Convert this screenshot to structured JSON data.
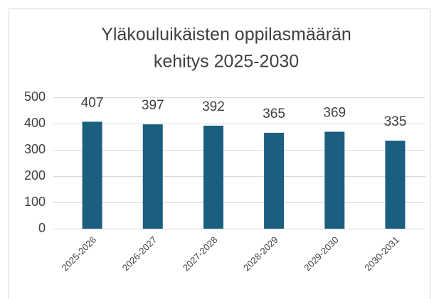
{
  "chart_data": {
    "type": "bar",
    "title": [
      "Yläkouluikäisten oppilasmäärän",
      "kehitys 2025-2030"
    ],
    "categories": [
      "2025-2026",
      "2026-2027",
      "2027-2028",
      "2028-2029",
      "2029-2030",
      "2030-2031"
    ],
    "values": [
      407,
      397,
      392,
      365,
      369,
      335
    ],
    "color": "#1a5e80",
    "ylim": [
      0,
      500
    ],
    "yticks": [
      0,
      100,
      200,
      300,
      400,
      500
    ],
    "grid": true
  }
}
